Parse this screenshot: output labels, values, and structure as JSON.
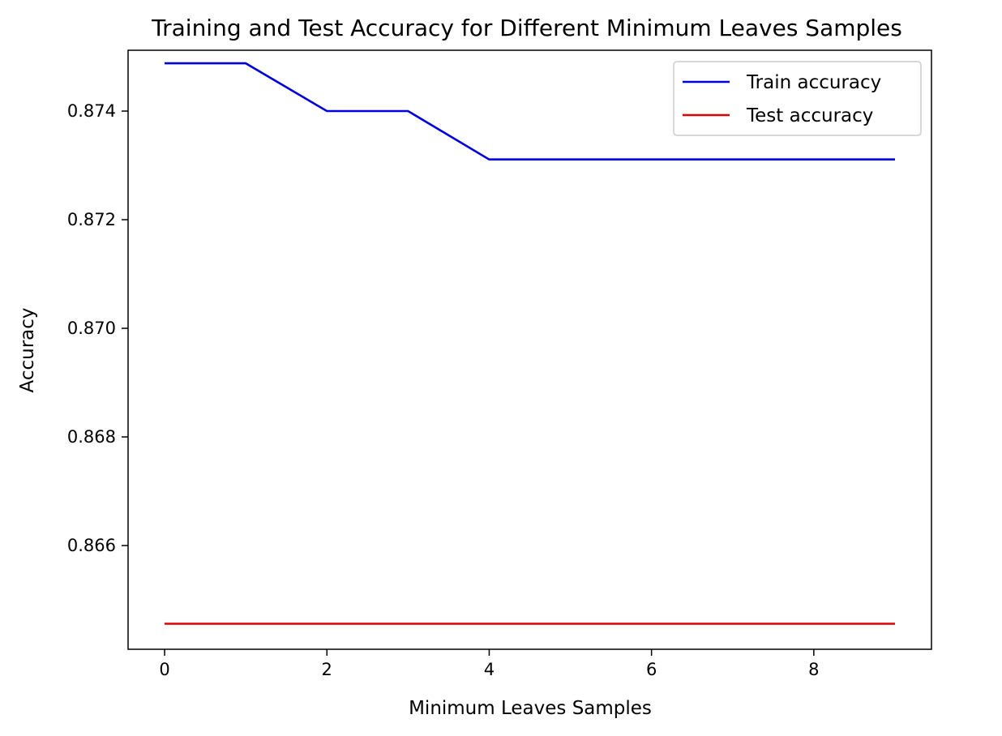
{
  "chart_data": {
    "type": "line",
    "title": "Training and Test Accuracy for Different Minimum Leaves Samples",
    "xlabel": "Minimum Leaves Samples",
    "ylabel": "Accuracy",
    "xlim": [
      -0.45,
      9.45
    ],
    "ylim": [
      0.86409,
      0.87512
    ],
    "xticks": [
      0,
      2,
      4,
      6,
      8
    ],
    "yticks": [
      0.866,
      0.868,
      0.87,
      0.872,
      0.874
    ],
    "grid": false,
    "legend_position": "top-right",
    "x": [
      0,
      1,
      2,
      3,
      4,
      5,
      6,
      7,
      8,
      9
    ],
    "series": [
      {
        "name": "Train accuracy",
        "color": "#0000dd",
        "values": [
          0.87488,
          0.87488,
          0.874,
          0.874,
          0.87311,
          0.87311,
          0.87311,
          0.87311,
          0.87311,
          0.87311
        ]
      },
      {
        "name": "Test accuracy",
        "color": "#dd0000",
        "values": [
          0.86456,
          0.86456,
          0.86456,
          0.86456,
          0.86456,
          0.86456,
          0.86456,
          0.86456,
          0.86456,
          0.86456
        ]
      }
    ]
  }
}
